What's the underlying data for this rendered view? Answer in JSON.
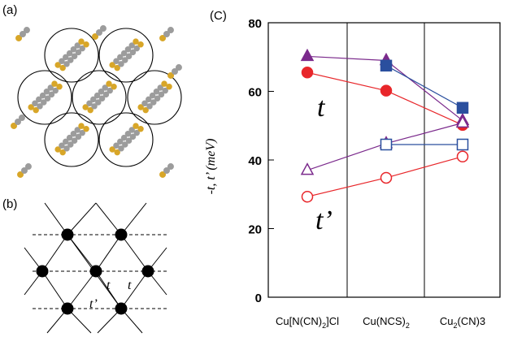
{
  "panels": {
    "a": {
      "label": "(a)"
    },
    "b": {
      "label": "(b)",
      "bond_labels": {
        "t_left": "t",
        "t_right": "t",
        "t_prime": "t’"
      }
    },
    "c": {
      "label": "(C)"
    }
  },
  "colors": {
    "red": "#e8262a",
    "purple": "#7b2a8c",
    "blue": "#2a4f9e",
    "sulfur": "#d8a628",
    "carbon": "#9c9c9c"
  },
  "chart_data": {
    "type": "line",
    "ylabel": "-t, t’ (meV)",
    "categories": [
      "Cu[N(CN)2]Cl",
      "Cu(NCS)2",
      "Cu2(CN)3"
    ],
    "tick_labels": [
      {
        "base": "Cu[N(CN)",
        "sub": "2",
        "tail": "]Cl"
      },
      {
        "base": "Cu(NCS)",
        "sub": "2",
        "tail": ""
      },
      {
        "base": "Cu",
        "sub": "2",
        "tail": "(CN)3"
      }
    ],
    "ylim": [
      0,
      80
    ],
    "yticks": [
      0,
      20,
      40,
      60,
      80
    ],
    "grid": false,
    "annotations": {
      "t": "t",
      "t_prime": "t’"
    },
    "series": [
      {
        "values": [
          65.5,
          60.2,
          50.2
        ],
        "marker": "circle",
        "fill": "filled",
        "color": "#e8262a"
      },
      {
        "values": [
          70.2,
          69.0,
          51.5
        ],
        "marker": "triangle",
        "fill": "filled",
        "color": "#7b2a8c"
      },
      {
        "values": [
          null,
          67.5,
          55.2
        ],
        "marker": "square",
        "fill": "filled",
        "color": "#2a4f9e"
      },
      {
        "values": [
          29.3,
          34.8,
          41.0
        ],
        "marker": "circle",
        "fill": "open",
        "color": "#e8262a"
      },
      {
        "values": [
          37.0,
          44.8,
          50.8
        ],
        "marker": "triangle",
        "fill": "open",
        "color": "#7b2a8c"
      },
      {
        "values": [
          null,
          44.5,
          44.5
        ],
        "marker": "square",
        "fill": "open",
        "color": "#2a4f9e"
      }
    ]
  }
}
